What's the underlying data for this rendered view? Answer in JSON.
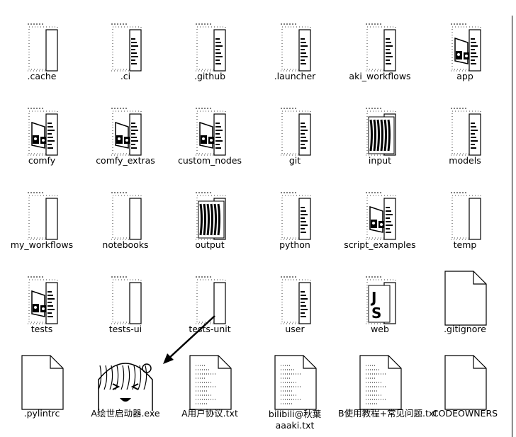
{
  "items": [
    {
      "label": ".cache",
      "kind": "folder-empty"
    },
    {
      "label": ".ci",
      "kind": "folder-doc"
    },
    {
      "label": ".github",
      "kind": "folder-doc"
    },
    {
      "label": ".launcher",
      "kind": "folder-doc"
    },
    {
      "label": "aki_workflows",
      "kind": "folder-doc"
    },
    {
      "label": "app",
      "kind": "folder-python"
    },
    {
      "label": "comfy",
      "kind": "folder-python"
    },
    {
      "label": "comfy_extras",
      "kind": "folder-python"
    },
    {
      "label": "custom_nodes",
      "kind": "folder-python"
    },
    {
      "label": "git",
      "kind": "folder-doc"
    },
    {
      "label": "input",
      "kind": "folder-image"
    },
    {
      "label": "models",
      "kind": "folder-doc"
    },
    {
      "label": "my_workflows",
      "kind": "folder-empty"
    },
    {
      "label": "notebooks",
      "kind": "folder-empty"
    },
    {
      "label": "output",
      "kind": "folder-image"
    },
    {
      "label": "python",
      "kind": "folder-doc"
    },
    {
      "label": "script_examples",
      "kind": "folder-python"
    },
    {
      "label": "temp",
      "kind": "folder-empty"
    },
    {
      "label": "tests",
      "kind": "folder-python"
    },
    {
      "label": "tests-ui",
      "kind": "folder-empty"
    },
    {
      "label": "tests-unit",
      "kind": "folder-empty"
    },
    {
      "label": "user",
      "kind": "folder-doc"
    },
    {
      "label": "web",
      "kind": "folder-web"
    },
    {
      "label": ".gitignore",
      "kind": "file-blank"
    },
    {
      "label": ".pylintrc",
      "kind": "file-blank"
    },
    {
      "label": "A绘世启动器.exe",
      "kind": "exe-anime"
    },
    {
      "label": "A用户协议.txt",
      "kind": "file-text"
    },
    {
      "label": "bilibili@秋葉aaaki.txt",
      "kind": "file-text"
    },
    {
      "label": "B使用教程+常见问题.txt",
      "kind": "file-text"
    },
    {
      "label": "CODEOWNERS",
      "kind": "file-blank"
    }
  ]
}
